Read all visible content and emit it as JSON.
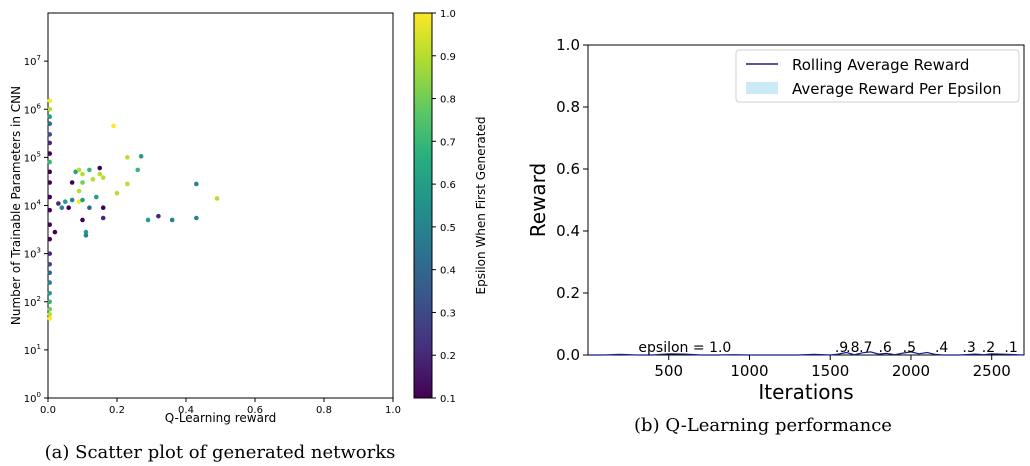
{
  "chart_data": [
    {
      "type": "scatter",
      "xlabel": "Q-Learning reward",
      "ylabel": "Number of Trainable Parameters in CNN",
      "xlim": [
        0.0,
        1.0
      ],
      "xticks": [
        "0.0",
        "0.2",
        "0.4",
        "0.6",
        "0.8",
        "1.0"
      ],
      "y_scale": "log",
      "ylim": [
        1,
        100000000
      ],
      "yticks": [
        {
          "base": "10",
          "exp": "0"
        },
        {
          "base": "10",
          "exp": "1"
        },
        {
          "base": "10",
          "exp": "2"
        },
        {
          "base": "10",
          "exp": "3"
        },
        {
          "base": "10",
          "exp": "4"
        },
        {
          "base": "10",
          "exp": "5"
        },
        {
          "base": "10",
          "exp": "6"
        },
        {
          "base": "10",
          "exp": "7"
        }
      ],
      "colorbar": {
        "label": "Epsilon When First Generated",
        "range": [
          0.1,
          1.0
        ],
        "colormap": "viridis",
        "ticks": [
          "0.1",
          "0.2",
          "0.3",
          "0.4",
          "0.5",
          "0.6",
          "0.7",
          "0.8",
          "0.9",
          "1.0"
        ]
      },
      "points": [
        {
          "x": 0.005,
          "y": 1500000,
          "eps": 1.0
        },
        {
          "x": 0.005,
          "y": 1000000,
          "eps": 0.9
        },
        {
          "x": 0.005,
          "y": 700000,
          "eps": 0.6
        },
        {
          "x": 0.005,
          "y": 500000,
          "eps": 0.4
        },
        {
          "x": 0.005,
          "y": 300000,
          "eps": 0.3
        },
        {
          "x": 0.005,
          "y": 200000,
          "eps": 0.2
        },
        {
          "x": 0.005,
          "y": 120000,
          "eps": 0.1
        },
        {
          "x": 0.005,
          "y": 80000,
          "eps": 0.7
        },
        {
          "x": 0.005,
          "y": 50000,
          "eps": 0.1
        },
        {
          "x": 0.005,
          "y": 30000,
          "eps": 0.1
        },
        {
          "x": 0.005,
          "y": 15000,
          "eps": 0.1
        },
        {
          "x": 0.005,
          "y": 8000,
          "eps": 0.1
        },
        {
          "x": 0.005,
          "y": 4000,
          "eps": 0.1
        },
        {
          "x": 0.005,
          "y": 2000,
          "eps": 0.1
        },
        {
          "x": 0.005,
          "y": 1000,
          "eps": 0.2
        },
        {
          "x": 0.005,
          "y": 600,
          "eps": 0.3
        },
        {
          "x": 0.005,
          "y": 400,
          "eps": 0.4
        },
        {
          "x": 0.005,
          "y": 250,
          "eps": 0.5
        },
        {
          "x": 0.005,
          "y": 150,
          "eps": 0.6
        },
        {
          "x": 0.005,
          "y": 100,
          "eps": 0.7
        },
        {
          "x": 0.005,
          "y": 70,
          "eps": 0.8
        },
        {
          "x": 0.005,
          "y": 55,
          "eps": 0.9
        },
        {
          "x": 0.005,
          "y": 45,
          "eps": 1.0
        },
        {
          "x": 0.02,
          "y": 2800,
          "eps": 0.1
        },
        {
          "x": 0.03,
          "y": 11000,
          "eps": 0.2
        },
        {
          "x": 0.04,
          "y": 9000,
          "eps": 0.5
        },
        {
          "x": 0.05,
          "y": 12000,
          "eps": 0.6
        },
        {
          "x": 0.06,
          "y": 9000,
          "eps": 0.1
        },
        {
          "x": 0.07,
          "y": 30000,
          "eps": 0.1
        },
        {
          "x": 0.07,
          "y": 13000,
          "eps": 0.5
        },
        {
          "x": 0.08,
          "y": 50000,
          "eps": 0.6
        },
        {
          "x": 0.09,
          "y": 55000,
          "eps": 0.9
        },
        {
          "x": 0.09,
          "y": 20000,
          "eps": 0.9
        },
        {
          "x": 0.09,
          "y": 12000,
          "eps": 1.0
        },
        {
          "x": 0.1,
          "y": 45000,
          "eps": 0.9
        },
        {
          "x": 0.1,
          "y": 30000,
          "eps": 0.8
        },
        {
          "x": 0.1,
          "y": 5000,
          "eps": 0.1
        },
        {
          "x": 0.1,
          "y": 13000,
          "eps": 0.6
        },
        {
          "x": 0.11,
          "y": 2800,
          "eps": 0.6
        },
        {
          "x": 0.11,
          "y": 2400,
          "eps": 0.5
        },
        {
          "x": 0.12,
          "y": 55000,
          "eps": 0.7
        },
        {
          "x": 0.12,
          "y": 9000,
          "eps": 0.4
        },
        {
          "x": 0.13,
          "y": 35000,
          "eps": 0.9
        },
        {
          "x": 0.14,
          "y": 15000,
          "eps": 0.6
        },
        {
          "x": 0.15,
          "y": 45000,
          "eps": 0.9
        },
        {
          "x": 0.15,
          "y": 60000,
          "eps": 0.1
        },
        {
          "x": 0.16,
          "y": 38000,
          "eps": 0.9
        },
        {
          "x": 0.16,
          "y": 9000,
          "eps": 0.1
        },
        {
          "x": 0.16,
          "y": 5500,
          "eps": 0.2
        },
        {
          "x": 0.19,
          "y": 450000,
          "eps": 1.0
        },
        {
          "x": 0.2,
          "y": 18000,
          "eps": 0.9
        },
        {
          "x": 0.23,
          "y": 100000,
          "eps": 0.9
        },
        {
          "x": 0.23,
          "y": 28000,
          "eps": 0.9
        },
        {
          "x": 0.26,
          "y": 55000,
          "eps": 0.7
        },
        {
          "x": 0.27,
          "y": 105000,
          "eps": 0.6
        },
        {
          "x": 0.29,
          "y": 5000,
          "eps": 0.6
        },
        {
          "x": 0.32,
          "y": 6000,
          "eps": 0.2
        },
        {
          "x": 0.36,
          "y": 5000,
          "eps": 0.5
        },
        {
          "x": 0.43,
          "y": 5500,
          "eps": 0.5
        },
        {
          "x": 0.43,
          "y": 28000,
          "eps": 0.5
        },
        {
          "x": 0.49,
          "y": 14000,
          "eps": 0.9
        }
      ]
    },
    {
      "type": "line",
      "xlabel": "Iterations",
      "ylabel": "Reward",
      "xlim": [
        0,
        2700
      ],
      "ylim": [
        0.0,
        1.0
      ],
      "xticks": [
        "500",
        "1000",
        "1500",
        "2000",
        "2500"
      ],
      "yticks": [
        "0.0",
        "0.2",
        "0.4",
        "0.6",
        "0.8",
        "1.0"
      ],
      "legend_position": "top-right",
      "series": [
        {
          "name": "Rolling Average Reward",
          "color": "#1a1a8c",
          "x": [
            0,
            100,
            200,
            300,
            400,
            500,
            600,
            700,
            800,
            900,
            1000,
            1100,
            1200,
            1300,
            1400,
            1500,
            1550,
            1600,
            1650,
            1700,
            1750,
            1800,
            1850,
            1900,
            1950,
            2000,
            2050,
            2100,
            2150,
            2200,
            2300,
            2400,
            2450,
            2500,
            2600,
            2700
          ],
          "y": [
            0.0,
            0.0,
            0.002,
            0.0,
            0.0,
            0.004,
            0.003,
            0.0,
            0.0,
            0.001,
            0.0,
            0.0,
            0.0,
            0.0,
            0.002,
            0.0,
            0.003,
            0.008,
            0.001,
            0.007,
            0.01,
            0.003,
            0.005,
            0.001,
            0.006,
            0.01,
            0.004,
            0.008,
            0.002,
            0.0,
            0.0,
            0.003,
            0.001,
            0.004,
            0.002,
            0.0
          ]
        },
        {
          "name": "Average Reward Per Epsilon",
          "color": "#cce9f6"
        }
      ],
      "annotations": [
        "epsilon = 1.0",
        ".9",
        ".8",
        ".7",
        ".6",
        ".5",
        ".4",
        ".3",
        ".2",
        ".1"
      ],
      "annotation_x": [
        600,
        1570,
        1640,
        1720,
        1840,
        1990,
        2190,
        2360,
        2480,
        2620
      ]
    }
  ],
  "captions": {
    "a": "(a) Scatter plot of generated networks",
    "b": "(b) Q-Learning performance"
  }
}
